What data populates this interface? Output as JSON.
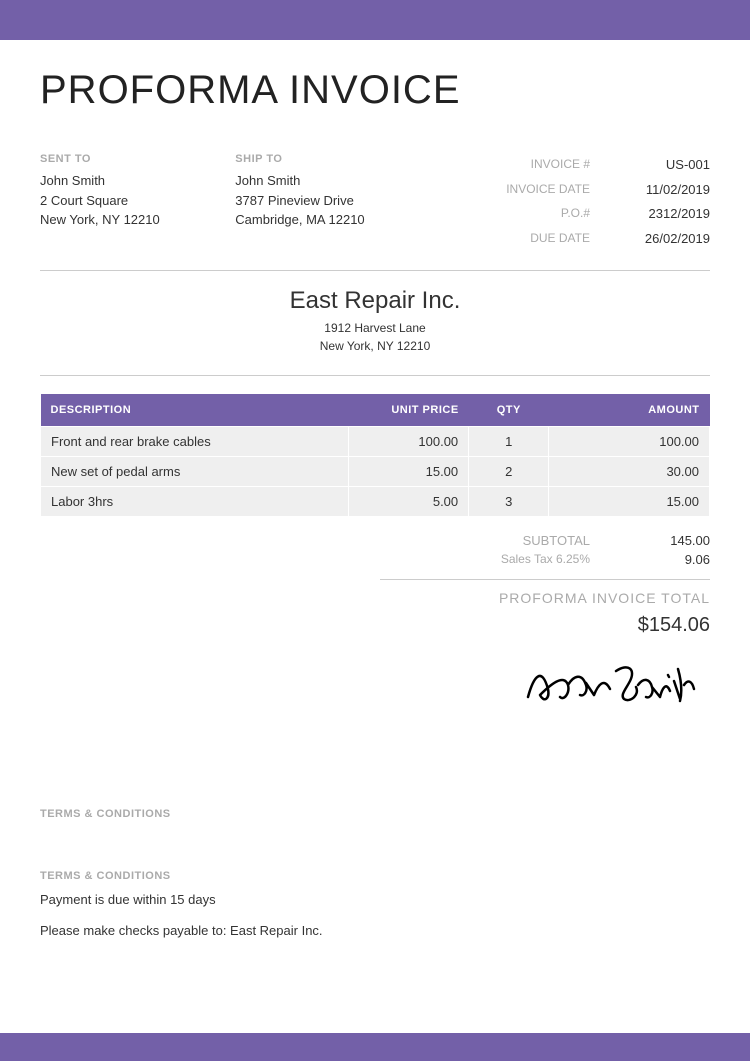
{
  "colors": {
    "accent": "#7360a8",
    "row_bg": "#efefef",
    "muted": "#aaaaaa",
    "text": "#333333",
    "background": "#ffffff"
  },
  "title": "PROFORMA INVOICE",
  "sent_to": {
    "label": "SENT TO",
    "name": "John Smith",
    "line1": "2 Court Square",
    "line2": "New York, NY 12210"
  },
  "ship_to": {
    "label": "SHIP TO",
    "name": "John Smith",
    "line1": "3787 Pineview Drive",
    "line2": "Cambridge, MA 12210"
  },
  "meta": {
    "invoice_no_label": "INVOICE #",
    "invoice_no": "US-001",
    "invoice_date_label": "INVOICE DATE",
    "invoice_date": "11/02/2019",
    "po_label": "P.O.#",
    "po": "2312/2019",
    "due_label": "DUE DATE",
    "due": "26/02/2019"
  },
  "company": {
    "name": "East Repair Inc.",
    "line1": "1912 Harvest Lane",
    "line2": "New York, NY 12210"
  },
  "table": {
    "headers": {
      "description": "DESCRIPTION",
      "unit_price": "UNIT PRICE",
      "qty": "QTY",
      "amount": "AMOUNT"
    },
    "rows": [
      {
        "description": "Front and rear brake cables",
        "unit_price": "100.00",
        "qty": "1",
        "amount": "100.00"
      },
      {
        "description": "New set of pedal arms",
        "unit_price": "15.00",
        "qty": "2",
        "amount": "30.00"
      },
      {
        "description": "Labor 3hrs",
        "unit_price": "5.00",
        "qty": "3",
        "amount": "15.00"
      }
    ]
  },
  "totals": {
    "subtotal_label": "SUBTOTAL",
    "subtotal": "145.00",
    "tax_label": "Sales Tax 6.25%",
    "tax": "9.06",
    "total_label": "PROFORMA INVOICE TOTAL",
    "total": "$154.06"
  },
  "signature_name": "John Smith",
  "terms1": {
    "label": "TERMS & CONDITIONS"
  },
  "terms2": {
    "label": "TERMS & CONDITIONS",
    "line1": "Payment is due within 15 days",
    "line2": "Please make checks payable to: East Repair Inc."
  }
}
